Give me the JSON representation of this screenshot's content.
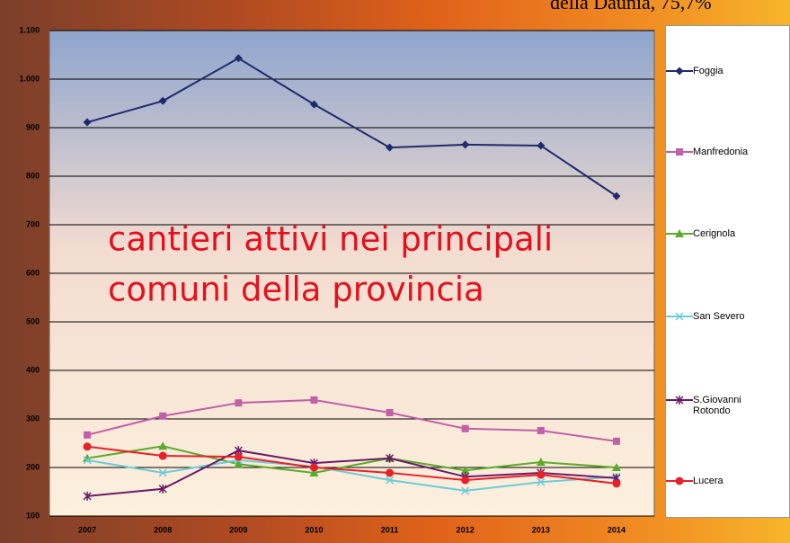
{
  "corner_text": "della Daunia, 75,7%",
  "chart_data": {
    "type": "line",
    "annotation": [
      "cantieri attivi nei principali",
      "comuni della provincia"
    ],
    "categories": [
      "2007",
      "2008",
      "2009",
      "2010",
      "2011",
      "2012",
      "2013",
      "2014"
    ],
    "ylim": [
      100,
      1100
    ],
    "yticks": [
      100,
      200,
      300,
      400,
      500,
      600,
      700,
      800,
      900,
      {
        "value": 1000,
        "label": "1.000"
      },
      {
        "value": 1100,
        "label": "1.100"
      }
    ],
    "grid": true,
    "series": [
      {
        "name": "Foggia",
        "color": "#1f2a6e",
        "marker": "diamond",
        "values": [
          911,
          955,
          1043,
          948,
          859,
          865,
          863,
          759
        ]
      },
      {
        "name": "Manfredonia",
        "color": "#c060a8",
        "marker": "square",
        "values": [
          267,
          306,
          333,
          339,
          313,
          280,
          276,
          254
        ]
      },
      {
        "name": "Cerignola",
        "color": "#5aab2a",
        "marker": "triangle",
        "values": [
          219,
          244,
          207,
          189,
          219,
          194,
          211,
          200
        ]
      },
      {
        "name": "San Severo",
        "color": "#6ccbd8",
        "marker": "x",
        "values": [
          215,
          189,
          215,
          202,
          174,
          152,
          170,
          181
        ]
      },
      {
        "name": "S.Giovanni Rotondo",
        "color": "#6a1a6a",
        "marker": "star",
        "values": [
          141,
          156,
          235,
          209,
          219,
          181,
          189,
          178
        ]
      },
      {
        "name": "Lucera",
        "color": "#e8202a",
        "marker": "circle",
        "values": [
          243,
          224,
          222,
          200,
          189,
          174,
          185,
          167
        ]
      }
    ]
  }
}
